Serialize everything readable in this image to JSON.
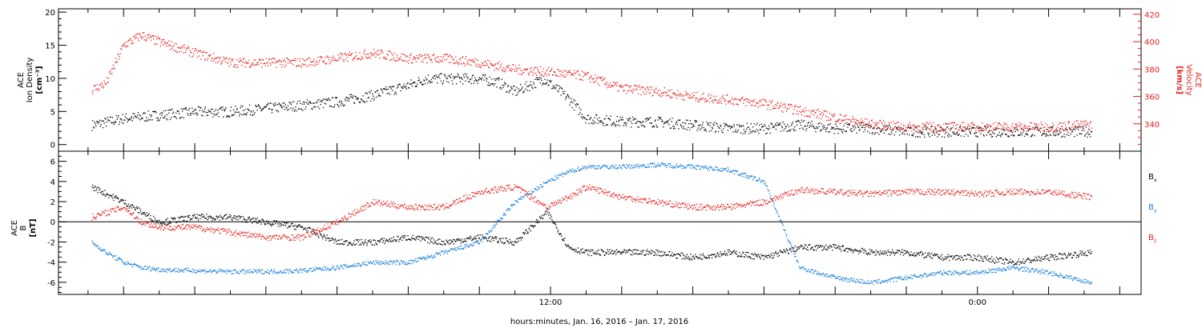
{
  "chart_data": [
    {
      "type": "scatter",
      "title": "",
      "ylabel_left": [
        "ACE",
        "Ion Density",
        "[cm⁻³]"
      ],
      "ylabel_right": [
        "ACE",
        "Velocity",
        "[km/s]"
      ],
      "ylim_left": [
        -1,
        20.5
      ],
      "ylim_right": [
        320,
        424
      ],
      "y_ticks_left": [
        "0",
        "5",
        "10",
        "15",
        "20"
      ],
      "y_ticks_right": [
        "340",
        "360",
        "380",
        "400",
        "420"
      ],
      "colors": {
        "density": "#000000",
        "velocity": "#e8201c"
      },
      "series": [
        {
          "axis": "left",
          "color": "#000000",
          "x_hours": [
            -0.9,
            0,
            1,
            2,
            3,
            4,
            5,
            6,
            7,
            8,
            8.5,
            9,
            10,
            10.5,
            11,
            11.8,
            12.5,
            13,
            14,
            15,
            16,
            17,
            18,
            19,
            20,
            21,
            22,
            23,
            24,
            25,
            26,
            27.2
          ],
          "values": [
            3,
            4,
            4.5,
            5,
            5,
            5.5,
            6,
            6.5,
            7.5,
            9,
            10,
            10,
            10,
            9.5,
            8,
            10,
            7,
            4,
            3.5,
            3.5,
            3,
            2.5,
            2.5,
            3,
            2.5,
            2.5,
            2,
            2,
            2,
            2,
            2,
            2
          ]
        },
        {
          "axis": "right",
          "color": "#e8201c",
          "x_hours": [
            -0.9,
            -0.5,
            0,
            0.5,
            1,
            2,
            3,
            4,
            5,
            6,
            7,
            8,
            9,
            10,
            11,
            12,
            13,
            14,
            15,
            16,
            17,
            18,
            19,
            20,
            21,
            22,
            23,
            24,
            25,
            26,
            27.2
          ],
          "values": [
            365,
            370,
            398,
            405,
            400,
            392,
            385,
            385,
            385,
            388,
            392,
            388,
            388,
            385,
            380,
            378,
            375,
            366,
            364,
            360,
            358,
            355,
            350,
            345,
            340,
            338,
            338,
            338,
            338,
            338,
            340
          ]
        }
      ]
    },
    {
      "type": "scatter",
      "title": "",
      "ylabel": [
        "ACE",
        "B",
        "[nT]"
      ],
      "ylim": [
        -7.2,
        7
      ],
      "y_ticks": [
        "-6",
        "-4",
        "-2",
        "0",
        "2",
        "4",
        "6"
      ],
      "zero_line": true,
      "legend_position": "right",
      "series": [
        {
          "name": "B",
          "subscript": "x",
          "color": "#000000",
          "x_hours": [
            -0.9,
            0,
            1,
            2,
            3,
            4,
            5,
            6,
            7,
            8,
            9,
            10,
            11,
            11.9,
            12.5,
            13,
            14,
            15,
            16,
            17,
            18,
            19,
            20,
            21,
            22,
            23,
            24,
            25,
            26,
            27.2
          ],
          "values": [
            3.5,
            2,
            0,
            0.5,
            0.5,
            0,
            -0.5,
            -2,
            -2,
            -1.5,
            -2,
            -1.5,
            -2,
            1,
            -2.5,
            -3,
            -3,
            -3,
            -3.5,
            -3,
            -3.5,
            -2.5,
            -2.5,
            -3,
            -3,
            -3.5,
            -3.5,
            -4,
            -3.5,
            -3
          ]
        },
        {
          "name": "B",
          "subscript": "y",
          "color": "#1a7fdc",
          "x_hours": [
            -0.9,
            -0.5,
            0,
            0.5,
            1,
            2,
            3,
            4,
            5,
            6,
            7,
            8,
            9,
            10,
            11,
            11.9,
            12.5,
            13,
            14,
            15,
            16,
            17,
            18,
            19,
            20,
            21,
            22,
            23,
            24,
            25,
            26,
            27.2
          ],
          "values": [
            -2,
            -3,
            -4,
            -4.5,
            -4.7,
            -4.8,
            -4.9,
            -4.9,
            -4.8,
            -4.5,
            -4,
            -4,
            -3,
            -2,
            2,
            4,
            5,
            5.5,
            5.5,
            5.7,
            5.5,
            5.2,
            4,
            -4.5,
            -5.5,
            -6,
            -5.5,
            -5,
            -5,
            -4.5,
            -5,
            -6
          ]
        },
        {
          "name": "B",
          "subscript": "z",
          "color": "#e8201c",
          "x_hours": [
            -0.9,
            0,
            0.5,
            1,
            2,
            3,
            4,
            5,
            6,
            7,
            8,
            9,
            10,
            11,
            11.9,
            12.5,
            13,
            14,
            15,
            16,
            17,
            18,
            19,
            20,
            21,
            22,
            23,
            24,
            25,
            26,
            27.2
          ],
          "values": [
            0.5,
            1.5,
            0,
            -0.5,
            -0.5,
            -1,
            -1.5,
            -1.5,
            0,
            2,
            1.5,
            1.5,
            3,
            3.5,
            1.5,
            2.5,
            3.5,
            2.5,
            2,
            1.5,
            1.5,
            2,
            3.2,
            3,
            2.8,
            3,
            3,
            2.8,
            3,
            3,
            2.5
          ]
        }
      ]
    }
  ],
  "x_axis": {
    "label": "hours:minutes, Jan. 16, 2016 – Jan. 17, 2016",
    "tick_labels": [
      "12:00",
      "0:00"
    ],
    "tick_label_hours": [
      12,
      24
    ],
    "range_hours": [
      -1.83,
      28.6
    ],
    "minor_tick_step_hours": 1,
    "major_tick_step_hours": 2
  }
}
